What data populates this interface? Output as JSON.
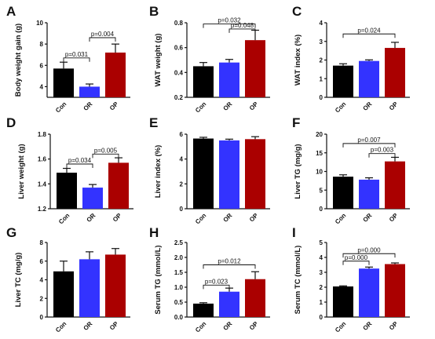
{
  "colors": {
    "Con": "#000000",
    "OR": "#3333ff",
    "OP": "#aa0000"
  },
  "chart_data": [
    {
      "type": "bar",
      "letter": "A",
      "ylabel": "Body weight gain (g)",
      "categories": [
        "Con",
        "OR",
        "OP"
      ],
      "values": [
        5.7,
        4.0,
        7.2
      ],
      "errors": [
        0.6,
        0.25,
        0.8
      ],
      "ylim": [
        3,
        10
      ],
      "yticks": [
        "4",
        "6",
        "8",
        "10"
      ],
      "brackets": [
        {
          "from": 0,
          "to": 1,
          "y": 6.7,
          "label": "p=0.031"
        },
        {
          "from": 1,
          "to": 2,
          "y": 8.6,
          "label": "p=0.004"
        }
      ]
    },
    {
      "type": "bar",
      "letter": "B",
      "ylabel": "WAT weight (g)",
      "categories": [
        "Con",
        "OR",
        "OP"
      ],
      "values": [
        0.45,
        0.48,
        0.66
      ],
      "errors": [
        0.03,
        0.025,
        0.08
      ],
      "ylim": [
        0.2,
        0.8
      ],
      "yticks": [
        "0.2",
        "0.4",
        "0.6",
        "0.8"
      ],
      "brackets": [
        {
          "from": 0,
          "to": 2,
          "y": 0.79,
          "label": "p=0.032"
        },
        {
          "from": 1,
          "to": 2,
          "y": 0.75,
          "label": "p=0.048"
        }
      ]
    },
    {
      "type": "bar",
      "letter": "C",
      "ylabel": "WAT index (%)",
      "categories": [
        "Con",
        "OR",
        "OP"
      ],
      "values": [
        1.7,
        1.95,
        2.65
      ],
      "errors": [
        0.1,
        0.06,
        0.3
      ],
      "ylim": [
        0,
        4
      ],
      "yticks": [
        "0",
        "1",
        "2",
        "3",
        "4"
      ],
      "brackets": [
        {
          "from": 0,
          "to": 2,
          "y": 3.4,
          "label": "p=0.024"
        }
      ]
    },
    {
      "type": "bar",
      "letter": "D",
      "ylabel": "Liver weight (g)",
      "categories": [
        "Con",
        "OR",
        "OP"
      ],
      "values": [
        1.49,
        1.37,
        1.57
      ],
      "errors": [
        0.035,
        0.025,
        0.04
      ],
      "ylim": [
        1.2,
        1.8
      ],
      "yticks": [
        "1.2",
        "1.4",
        "1.6",
        "1.8"
      ],
      "brackets": [
        {
          "from": 0,
          "to": 1,
          "y": 1.56,
          "label": "p=0.034"
        },
        {
          "from": 1,
          "to": 2,
          "y": 1.64,
          "label": "p=0.005"
        }
      ]
    },
    {
      "type": "bar",
      "letter": "E",
      "ylabel": "Liver index (%)",
      "categories": [
        "Con",
        "OR",
        "OP"
      ],
      "values": [
        5.65,
        5.5,
        5.6
      ],
      "errors": [
        0.1,
        0.1,
        0.2
      ],
      "ylim": [
        0,
        6
      ],
      "yticks": [
        "0",
        "2",
        "4",
        "6"
      ],
      "brackets": []
    },
    {
      "type": "bar",
      "letter": "F",
      "ylabel": "Liver TG (mg/g)",
      "categories": [
        "Con",
        "OR",
        "OP"
      ],
      "values": [
        8.6,
        7.8,
        12.7
      ],
      "errors": [
        0.5,
        0.5,
        1.1
      ],
      "ylim": [
        0,
        20
      ],
      "yticks": [
        "0",
        "5",
        "10",
        "15",
        "20"
      ],
      "brackets": [
        {
          "from": 0,
          "to": 2,
          "y": 17.5,
          "label": "p=0.007"
        },
        {
          "from": 1,
          "to": 2,
          "y": 14.8,
          "label": "p=0.003"
        }
      ]
    },
    {
      "type": "bar",
      "letter": "G",
      "ylabel": "Liver TC (mg/g)",
      "categories": [
        "Con",
        "OR",
        "OP"
      ],
      "values": [
        4.9,
        6.2,
        6.7
      ],
      "errors": [
        1.1,
        0.8,
        0.65
      ],
      "ylim": [
        0,
        8
      ],
      "yticks": [
        "0",
        "2",
        "4",
        "6",
        "8"
      ],
      "brackets": []
    },
    {
      "type": "bar",
      "letter": "H",
      "ylabel": "Serum TG (mmol/L)",
      "categories": [
        "Con",
        "OR",
        "OP"
      ],
      "values": [
        0.45,
        0.85,
        1.27
      ],
      "errors": [
        0.03,
        0.12,
        0.25
      ],
      "ylim": [
        0,
        2.5
      ],
      "yticks": [
        "0.0",
        "0.5",
        "1.0",
        "1.5",
        "2.0",
        "2.5"
      ],
      "brackets": [
        {
          "from": 0,
          "to": 2,
          "y": 1.75,
          "label": "p=0.012"
        },
        {
          "from": 0,
          "to": 1,
          "y": 1.07,
          "label": "p=0.023"
        }
      ]
    },
    {
      "type": "bar",
      "letter": "I",
      "ylabel": "Serum TC (mmol/L)",
      "categories": [
        "Con",
        "OR",
        "OP"
      ],
      "values": [
        2.05,
        3.25,
        3.55
      ],
      "errors": [
        0.04,
        0.1,
        0.08
      ],
      "ylim": [
        0,
        5
      ],
      "yticks": [
        "0",
        "1",
        "2",
        "3",
        "4",
        "5"
      ],
      "brackets": [
        {
          "from": 0,
          "to": 1,
          "y": 3.75,
          "label": "p=0.000"
        },
        {
          "from": 0,
          "to": 2,
          "y": 4.25,
          "label": "p=0.000"
        }
      ]
    }
  ]
}
